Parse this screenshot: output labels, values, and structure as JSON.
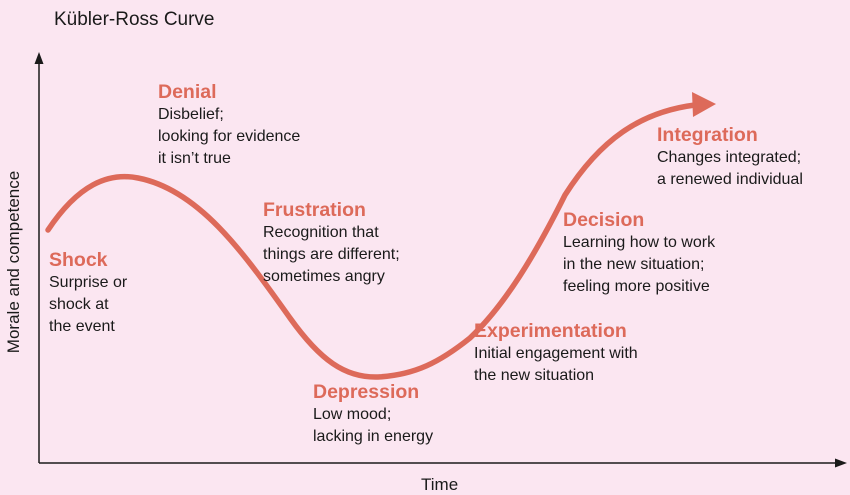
{
  "title": "Kübler-Ross Curve",
  "axes": {
    "y_label": "Morale and competence",
    "x_label": "Time"
  },
  "colors": {
    "background": "#fbe6f1",
    "curve": "#dd6a5a",
    "stage_name": "#dd6a5a",
    "text": "#1a1a1a",
    "axis": "#1a1a1a"
  },
  "stages": [
    {
      "id": "shock",
      "name": "Shock",
      "lines": [
        "Surprise or",
        "shock at",
        "the event"
      ]
    },
    {
      "id": "denial",
      "name": "Denial",
      "lines": [
        "Disbelief;",
        "looking for evidence",
        "it isn’t true"
      ]
    },
    {
      "id": "frustration",
      "name": "Frustration",
      "lines": [
        "Recognition that",
        "things are different;",
        "sometimes angry"
      ]
    },
    {
      "id": "depression",
      "name": "Depression",
      "lines": [
        "Low mood;",
        "lacking in energy"
      ]
    },
    {
      "id": "experimentation",
      "name": "Experimentation",
      "lines": [
        "Initial engagement with",
        "the new situation"
      ]
    },
    {
      "id": "decision",
      "name": "Decision",
      "lines": [
        "Learning how to work",
        "in the new situation;",
        "feeling more positive"
      ]
    },
    {
      "id": "integration",
      "name": "Integration",
      "lines": [
        "Changes integrated;",
        "a renewed individual"
      ]
    }
  ]
}
